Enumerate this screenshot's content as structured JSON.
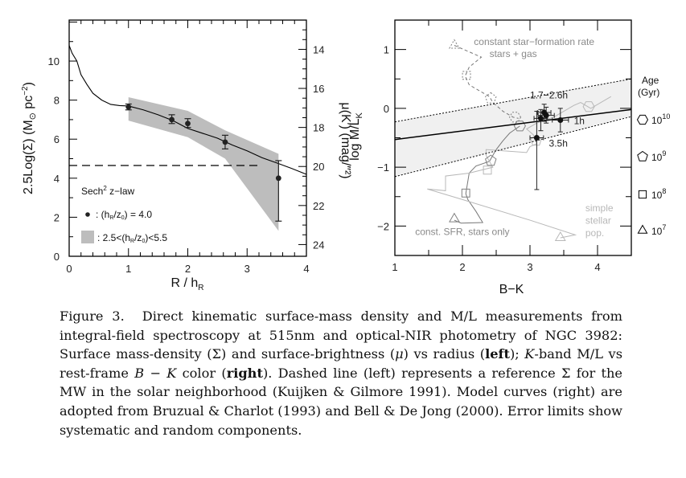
{
  "figure": {
    "caption_label": "Figure 3.",
    "caption_parts": [
      {
        "text": "Direct kinematic surface-mass density and M/L measurements from integral-field spectroscopy at 515nm and optical-NIR photometry of NGC 3982: Surface mass-density (Σ) and surface-brightness (",
        "style": "normal"
      },
      {
        "text": "μ",
        "style": "italic"
      },
      {
        "text": ") vs radius (",
        "style": "normal"
      },
      {
        "text": "left",
        "style": "bold"
      },
      {
        "text": "); ",
        "style": "normal"
      },
      {
        "text": "K",
        "style": "italic"
      },
      {
        "text": "-band M/L vs rest-frame ",
        "style": "normal"
      },
      {
        "text": "B − K",
        "style": "italic"
      },
      {
        "text": " color (",
        "style": "normal"
      },
      {
        "text": "right",
        "style": "bold"
      },
      {
        "text": "). Dashed line (left) represents a reference Σ for the MW in the solar neighborhood (Kuijken & Gilmore 1991). Model curves (right) are adopted from Bruzual & Charlot (1993) and Bell & De Jong (2000). Error limits show systematic and random components.",
        "style": "normal"
      }
    ]
  },
  "chart_data": [
    {
      "type": "line",
      "panel": "left",
      "title": "",
      "xlabel": "R / h_R",
      "ylabel": "2.5Log(Σ) (M⊙ pc⁻²)",
      "y2label": "μ(K') (mag/\"²)",
      "xlim": [
        0,
        4
      ],
      "ylim": [
        0,
        12.1
      ],
      "y2lim": [
        24.6,
        12.5
      ],
      "xticks": [
        0,
        1,
        2,
        3,
        4
      ],
      "yticks": [
        0,
        2,
        4,
        6,
        8,
        10
      ],
      "y2ticks": [
        14,
        16,
        18,
        20,
        22,
        24
      ],
      "grid": false,
      "series": [
        {
          "name": "surface density profile",
          "kind": "line",
          "color": "#000000",
          "x": [
            0.0,
            0.05,
            0.13,
            0.2,
            0.3,
            0.4,
            0.55,
            0.7,
            0.85,
            1.0,
            1.25,
            1.5,
            1.75,
            2.0,
            2.25,
            2.5,
            2.75,
            3.0,
            3.25,
            3.53,
            3.75,
            4.0
          ],
          "y": [
            10.8,
            10.4,
            10.0,
            9.3,
            8.8,
            8.35,
            8.0,
            7.78,
            7.72,
            7.7,
            7.5,
            7.25,
            6.95,
            6.55,
            6.3,
            6.05,
            5.7,
            5.4,
            5.05,
            4.75,
            4.5,
            4.2
          ]
        },
        {
          "name": "MW solar-neighborhood reference",
          "kind": "dashed",
          "color": "#000000",
          "x": [
            0.0,
            3.2
          ],
          "y": [
            4.65,
            4.65
          ]
        },
        {
          "name": "(h_R/z_0) = 4.0",
          "kind": "points",
          "color": "#222222",
          "x": [
            1.0,
            1.73,
            2.0,
            2.63,
            3.53
          ],
          "y": [
            7.65,
            7.0,
            6.8,
            5.85,
            4.0
          ],
          "y_err_low": [
            7.5,
            6.8,
            6.6,
            5.5,
            1.8
          ],
          "y_err_high": [
            7.8,
            7.25,
            7.05,
            6.2,
            4.9
          ]
        },
        {
          "name": "2.5<(h_R/z_0)<5.5",
          "kind": "band",
          "color": "#bdbdbd",
          "x": [
            1.0,
            2.0,
            2.63,
            3.53
          ],
          "upper": [
            8.15,
            7.45,
            6.45,
            5.25
          ],
          "lower": [
            6.95,
            6.1,
            5.0,
            1.3
          ]
        }
      ],
      "legend": {
        "placement": "bottom-left",
        "heading": "Sech² z−law",
        "entries": [
          {
            "marker": "dot",
            "label": ": (h_R/z_0) = 4.0"
          },
          {
            "marker": "gray-box",
            "label": ": 2.5<(h_R/z_0)<5.5"
          }
        ]
      }
    },
    {
      "type": "scatter",
      "panel": "right",
      "title": "",
      "xlabel": "B−K",
      "ylabel": "log M/L_K",
      "xlim": [
        1,
        4.5
      ],
      "ylim": [
        -2.5,
        1.5
      ],
      "xticks": [
        1,
        2,
        3,
        4
      ],
      "yticks": [
        -2,
        -1,
        0,
        1
      ],
      "grid": false,
      "fit": {
        "solid": {
          "x": [
            1,
            4.5
          ],
          "y": [
            -0.53,
            -0.02
          ]
        },
        "upper_dotted": {
          "x": [
            1,
            4.5
          ],
          "y": [
            -0.23,
            0.5
          ]
        },
        "lower_dotted": {
          "x": [
            1,
            4.5
          ],
          "y": [
            -1.16,
            -0.14
          ]
        },
        "band_color": "#f0f0f0"
      },
      "points": [
        {
          "label": "1h",
          "x": 3.45,
          "y": -0.2,
          "xerr": 0.12,
          "y_low": -0.4,
          "y_high": 0.0
        },
        {
          "label": "1.7−2.6h",
          "x": 3.21,
          "y": -0.07,
          "xerr": 0.1,
          "y_low": -0.22,
          "y_high": 0.07
        },
        {
          "label": "",
          "x": 3.24,
          "y": -0.12,
          "xerr": 0.12,
          "y_low": -0.25,
          "y_high": 0.02
        },
        {
          "label": "",
          "x": 3.16,
          "y": -0.17,
          "xerr": 0.1,
          "y_low": -0.38,
          "y_high": -0.02
        },
        {
          "label": "3.5h",
          "x": 3.1,
          "y": -0.5,
          "xerr": 0.1,
          "y_low": -1.38,
          "y_high": -0.05
        }
      ],
      "models": [
        {
          "name": "constant star-formation rate stars + gas",
          "style": "dashed",
          "color": "#777777",
          "x": [
            1.88,
            2.28,
            2.1,
            2.04,
            2.1,
            2.4,
            2.45,
            2.6,
            2.75,
            2.83
          ],
          "y": [
            1.07,
            0.87,
            0.7,
            0.55,
            0.4,
            0.2,
            0.1,
            -0.05,
            -0.15,
            -0.17
          ]
        },
        {
          "name": "const. SFR, stars only",
          "style": "solid",
          "color": "#777777",
          "x": [
            1.88,
            1.98,
            2.3,
            2.2,
            2.08,
            2.05,
            2.1,
            2.2,
            2.4,
            2.5,
            2.6,
            2.7,
            2.85
          ],
          "y": [
            -1.9,
            -1.95,
            -1.94,
            -1.75,
            -1.55,
            -1.45,
            -1.1,
            -0.98,
            -0.9,
            -0.7,
            -0.55,
            -0.42,
            -0.3
          ]
        },
        {
          "name": "simple stellar pop.",
          "style": "solid",
          "color": "#b8b8b8",
          "x": [
            3.45,
            3.67,
            3.0,
            2.0,
            1.48,
            1.75,
            1.75,
            2.1,
            2.45,
            2.35,
            2.35,
            2.95,
            3.0,
            3.1,
            3.05,
            2.95,
            3.1,
            3.35,
            3.65,
            3.75,
            3.9,
            4.2
          ],
          "y": [
            -2.2,
            -2.15,
            -1.9,
            -1.55,
            -1.37,
            -1.4,
            -1.15,
            -1.1,
            -1.0,
            -0.8,
            -0.7,
            -0.75,
            -0.65,
            -0.6,
            -0.45,
            -0.35,
            -0.25,
            -0.15,
            0.05,
            0.1,
            0.0,
            0.2
          ]
        }
      ],
      "age_markers": [
        {
          "model": "stars+gas",
          "x": 1.88,
          "y": 1.07,
          "shape": "triangle"
        },
        {
          "model": "stars+gas",
          "x": 2.06,
          "y": 0.56,
          "shape": "square"
        },
        {
          "model": "stars+gas",
          "x": 2.42,
          "y": 0.17,
          "shape": "pentagon"
        },
        {
          "model": "stars+gas",
          "x": 2.78,
          "y": -0.15,
          "shape": "hexagon"
        },
        {
          "model": "stars-only",
          "x": 1.88,
          "y": -1.88,
          "shape": "triangle"
        },
        {
          "model": "stars-only",
          "x": 2.05,
          "y": -1.44,
          "shape": "square"
        },
        {
          "model": "stars-only",
          "x": 2.42,
          "y": -0.89,
          "shape": "pentagon"
        },
        {
          "model": "stars-only",
          "x": 2.85,
          "y": -0.3,
          "shape": "hexagon"
        },
        {
          "model": "ssp",
          "x": 3.45,
          "y": -2.2,
          "shape": "triangle"
        },
        {
          "model": "ssp",
          "x": 2.37,
          "y": -1.05,
          "shape": "square"
        },
        {
          "model": "ssp",
          "x": 3.09,
          "y": -0.55,
          "shape": "pentagon"
        },
        {
          "model": "ssp",
          "x": 3.87,
          "y": 0.03,
          "shape": "hexagon"
        }
      ],
      "annotations": [
        {
          "text": "constant star−formation rate",
          "x": 2.17,
          "y": 1.08,
          "color": "#8a8a8a"
        },
        {
          "text": "stars + gas",
          "x": 2.4,
          "y": 0.87,
          "color": "#8a8a8a"
        },
        {
          "text": "1.7−2.6h",
          "x": 3.0,
          "y": 0.17,
          "color": "#222222"
        },
        {
          "text": "1h",
          "x": 3.65,
          "y": -0.27,
          "color": "#222222"
        },
        {
          "text": "3.5h",
          "x": 3.28,
          "y": -0.65,
          "color": "#222222"
        },
        {
          "text": "const. SFR, stars only",
          "x": 1.3,
          "y": -2.15,
          "color": "#8a8a8a"
        },
        {
          "text": "simple",
          "x": 3.82,
          "y": -1.75,
          "color": "#b8b8b8"
        },
        {
          "text": "stellar",
          "x": 3.82,
          "y": -1.96,
          "color": "#b8b8b8"
        },
        {
          "text": "pop.",
          "x": 3.82,
          "y": -2.17,
          "color": "#b8b8b8"
        }
      ],
      "legend": {
        "placement": "right-outside",
        "heading": [
          "Age",
          "(Gyr)"
        ],
        "entries": [
          {
            "shape": "hexagon",
            "label": "10",
            "exp": "10"
          },
          {
            "shape": "pentagon",
            "label": "10",
            "exp": "9"
          },
          {
            "shape": "square",
            "label": "10",
            "exp": "8"
          },
          {
            "shape": "triangle",
            "label": "10",
            "exp": "7"
          }
        ]
      }
    }
  ]
}
